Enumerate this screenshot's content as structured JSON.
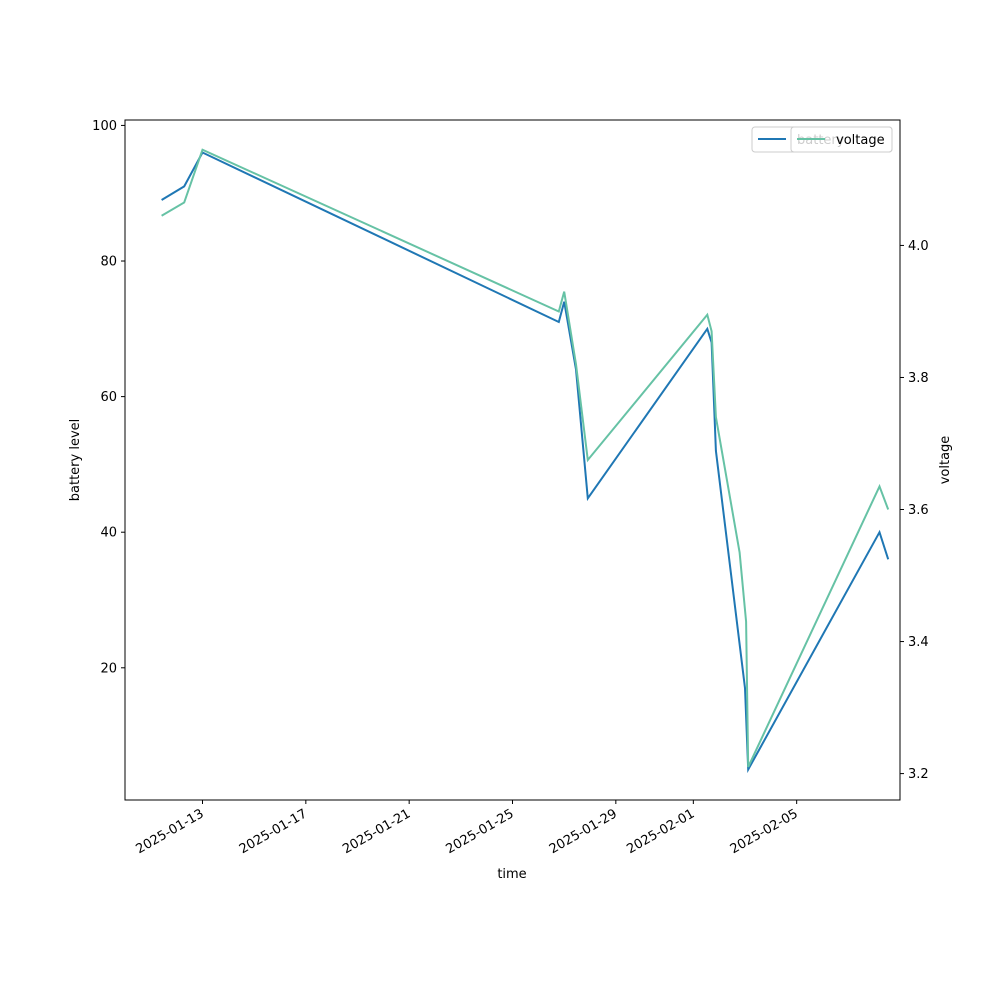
{
  "chart_data": {
    "type": "line",
    "xlabel": "time",
    "ylabel_left": "battery level",
    "ylabel_right": "voltage",
    "x_ticks": [
      "2025-01-13",
      "2025-01-17",
      "2025-01-21",
      "2025-01-25",
      "2025-01-29",
      "2025-02-01",
      "2025-02-05"
    ],
    "y_left_ticks": [
      "20",
      "40",
      "60",
      "80",
      "100"
    ],
    "y_left_tick_values": [
      20,
      40,
      60,
      80,
      100
    ],
    "y_right_ticks": [
      "3.2",
      "3.4",
      "3.6",
      "3.8",
      "4.0"
    ],
    "y_right_tick_values": [
      3.2,
      3.4,
      3.6,
      3.8,
      4.0
    ],
    "xlim": [
      "2025-01-10T00:00",
      "2025-02-09T00:00"
    ],
    "ylim_left": [
      0.5,
      100.8
    ],
    "ylim_right": [
      3.16,
      4.19
    ],
    "grid": false,
    "legend_position": "top-right",
    "series": [
      {
        "name": "battery",
        "axis": "left",
        "color": "#1f77b4",
        "points": [
          [
            "2025-01-11T10:00",
            89
          ],
          [
            "2025-01-12T07:00",
            91
          ],
          [
            "2025-01-13T00:00",
            96
          ],
          [
            "2025-01-26T19:00",
            71
          ],
          [
            "2025-01-27T00:00",
            74
          ],
          [
            "2025-01-27T11:00",
            64
          ],
          [
            "2025-01-27T22:00",
            45
          ],
          [
            "2025-02-01T13:00",
            70
          ],
          [
            "2025-02-01T17:00",
            68
          ],
          [
            "2025-02-01T21:00",
            52
          ],
          [
            "2025-02-03T00:00",
            17
          ],
          [
            "2025-02-03T03:00",
            5
          ],
          [
            "2025-02-08T05:00",
            40
          ],
          [
            "2025-02-08T13:00",
            36
          ]
        ]
      },
      {
        "name": "voltage",
        "axis": "right",
        "color": "#66c2a5",
        "points": [
          [
            "2025-01-11T10:00",
            4.045
          ],
          [
            "2025-01-12T07:00",
            4.065
          ],
          [
            "2025-01-13T00:00",
            4.145
          ],
          [
            "2025-01-26T19:00",
            3.9
          ],
          [
            "2025-01-27T00:00",
            3.93
          ],
          [
            "2025-01-27T11:00",
            3.82
          ],
          [
            "2025-01-27T22:00",
            3.675
          ],
          [
            "2025-02-01T13:00",
            3.895
          ],
          [
            "2025-02-01T17:00",
            3.87
          ],
          [
            "2025-02-01T21:00",
            3.74
          ],
          [
            "2025-02-02T19:00",
            3.535
          ],
          [
            "2025-02-03T01:00",
            3.43
          ],
          [
            "2025-02-03T03:00",
            3.21
          ],
          [
            "2025-02-08T05:00",
            3.635
          ],
          [
            "2025-02-08T13:00",
            3.6
          ]
        ]
      }
    ],
    "legends": [
      {
        "label": "battery"
      },
      {
        "label": "voltage"
      }
    ]
  }
}
